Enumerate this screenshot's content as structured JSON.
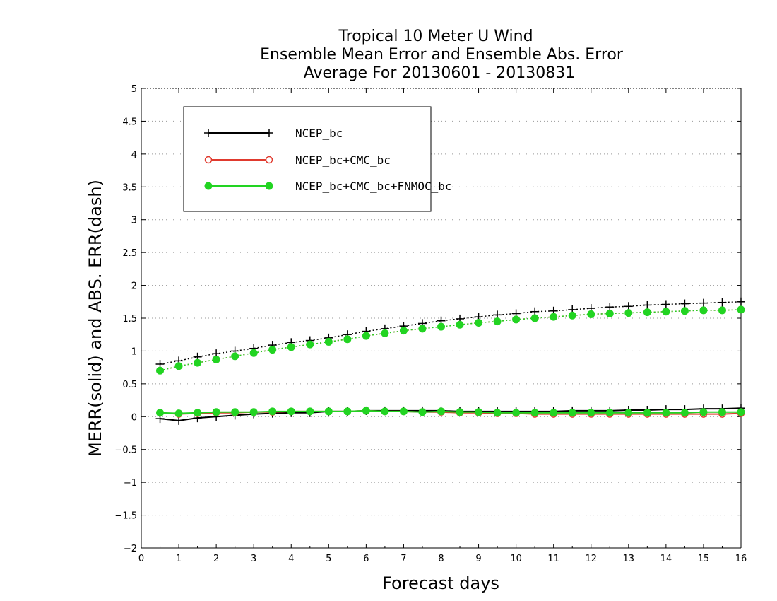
{
  "chart_data": {
    "type": "line",
    "title_lines": [
      "Tropical 10 Meter U Wind",
      "Ensemble Mean Error and Ensemble Abs. Error",
      "Average For 20130601 - 20130831"
    ],
    "xlabel": "Forecast days",
    "ylabel": "MERR(solid) and ABS. ERR(dash)",
    "xlim": [
      0,
      16
    ],
    "ylim": [
      -2,
      5
    ],
    "x_ticks": [
      "0",
      "1",
      "2",
      "3",
      "4",
      "5",
      "6",
      "7",
      "8",
      "9",
      "10",
      "11",
      "12",
      "13",
      "14",
      "15",
      "16"
    ],
    "y_ticks": [
      "−2",
      "−1.5",
      "−1",
      "−0.5",
      "0",
      "0.5",
      "1",
      "1.5",
      "2",
      "2.5",
      "3",
      "3.5",
      "4",
      "4.5",
      "5"
    ],
    "y_tick_values": [
      -2,
      -1.5,
      -1,
      -0.5,
      0,
      0.5,
      1,
      1.5,
      2,
      2.5,
      3,
      3.5,
      4,
      4.5,
      5
    ],
    "grid": "horizontal dotted",
    "legend_position": "top-left",
    "x": [
      0.5,
      1,
      1.5,
      2,
      2.5,
      3,
      3.5,
      4,
      4.5,
      5,
      5.5,
      6,
      6.5,
      7,
      7.5,
      8,
      8.5,
      9,
      9.5,
      10,
      10.5,
      11,
      11.5,
      12,
      12.5,
      13,
      13.5,
      14,
      14.5,
      15,
      15.5,
      16
    ],
    "series": [
      {
        "name": "NCEP_bc",
        "color": "#000000",
        "marker": "plus",
        "merr": [
          -0.03,
          -0.06,
          -0.02,
          0.0,
          0.02,
          0.04,
          0.05,
          0.06,
          0.06,
          0.08,
          0.08,
          0.09,
          0.09,
          0.09,
          0.09,
          0.09,
          0.08,
          0.08,
          0.08,
          0.08,
          0.08,
          0.08,
          0.09,
          0.09,
          0.09,
          0.1,
          0.1,
          0.11,
          0.11,
          0.12,
          0.12,
          0.13
        ],
        "abs_err": [
          0.8,
          0.85,
          0.91,
          0.96,
          1.0,
          1.04,
          1.09,
          1.13,
          1.16,
          1.2,
          1.25,
          1.3,
          1.34,
          1.38,
          1.42,
          1.46,
          1.49,
          1.52,
          1.55,
          1.57,
          1.6,
          1.61,
          1.63,
          1.65,
          1.67,
          1.68,
          1.7,
          1.71,
          1.72,
          1.73,
          1.74,
          1.75
        ]
      },
      {
        "name": "NCEP_bc+CMC_bc",
        "color": "#e03a2e",
        "marker": "open-circle",
        "merr": [
          0.06,
          0.04,
          0.05,
          0.06,
          0.06,
          0.07,
          0.07,
          0.08,
          0.08,
          0.08,
          0.08,
          0.09,
          0.08,
          0.08,
          0.07,
          0.07,
          0.06,
          0.06,
          0.05,
          0.05,
          0.04,
          0.04,
          0.04,
          0.04,
          0.04,
          0.04,
          0.04,
          0.04,
          0.04,
          0.04,
          0.04,
          0.05
        ],
        "abs_err": [
          0.7,
          0.77,
          0.82,
          0.87,
          0.92,
          0.97,
          1.02,
          1.06,
          1.1,
          1.14,
          1.18,
          1.23,
          1.27,
          1.31,
          1.34,
          1.37,
          1.4,
          1.43,
          1.45,
          1.48,
          1.5,
          1.52,
          1.54,
          1.56,
          1.57,
          1.58,
          1.59,
          1.6,
          1.61,
          1.62,
          1.62,
          1.63
        ]
      },
      {
        "name": "NCEP_bc+CMC_bc+FNMOC_bc",
        "color": "#22d422",
        "marker": "filled-circle",
        "merr": [
          0.06,
          0.05,
          0.06,
          0.07,
          0.07,
          0.07,
          0.08,
          0.08,
          0.08,
          0.08,
          0.08,
          0.09,
          0.08,
          0.08,
          0.07,
          0.08,
          0.07,
          0.07,
          0.06,
          0.06,
          0.06,
          0.06,
          0.06,
          0.06,
          0.06,
          0.06,
          0.06,
          0.06,
          0.06,
          0.07,
          0.07,
          0.07
        ],
        "abs_err": [
          0.7,
          0.77,
          0.82,
          0.87,
          0.92,
          0.97,
          1.02,
          1.06,
          1.1,
          1.14,
          1.18,
          1.23,
          1.27,
          1.31,
          1.34,
          1.37,
          1.4,
          1.43,
          1.45,
          1.48,
          1.5,
          1.52,
          1.54,
          1.56,
          1.57,
          1.58,
          1.59,
          1.6,
          1.61,
          1.62,
          1.62,
          1.63
        ]
      }
    ]
  }
}
